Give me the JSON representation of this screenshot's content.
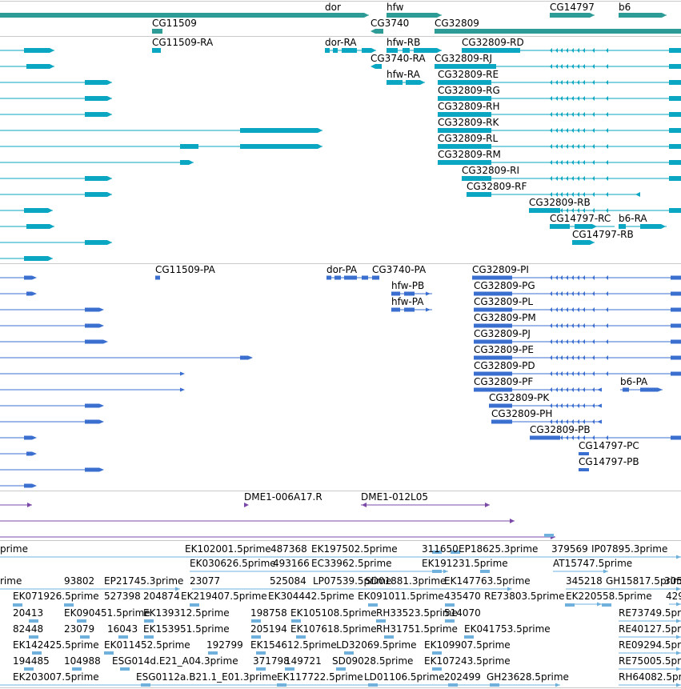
{
  "colors": {
    "background": "#ffffff",
    "track_separator": "#c9c9c9",
    "gene": "#2e9c96",
    "mrna": "#0aa6c2",
    "cds": "#3a6fcf",
    "clone": "#7a48a8",
    "est": "#6fb1dc",
    "label": "#000000"
  },
  "tracks": {
    "gene_span": {
      "name": "gene-span-track",
      "labels": [
        {
          "text": "dor"
        },
        {
          "text": "hfw"
        },
        {
          "text": "CG14797"
        },
        {
          "text": "b6"
        },
        {
          "text": "CG11509"
        },
        {
          "text": "CG3740"
        },
        {
          "text": "CG32809"
        }
      ]
    },
    "transcripts": {
      "name": "transcript-track",
      "labels": [
        {
          "text": "CG11509-RA"
        },
        {
          "text": "dor-RA"
        },
        {
          "text": "hfw-RB"
        },
        {
          "text": "CG32809-RD"
        },
        {
          "text": "CG3740-RA"
        },
        {
          "text": "CG32809-RJ"
        },
        {
          "text": "hfw-RA"
        },
        {
          "text": "CG32809-RE"
        },
        {
          "text": "CG32809-RG"
        },
        {
          "text": "CG32809-RH"
        },
        {
          "text": "CG32809-RK"
        },
        {
          "text": "CG32809-RL"
        },
        {
          "text": "CG32809-RM"
        },
        {
          "text": "CG32809-RI"
        },
        {
          "text": "CG32809-RF"
        },
        {
          "text": "CG32809-RB"
        },
        {
          "text": "CG14797-RC"
        },
        {
          "text": "b6-RA"
        },
        {
          "text": "CG14797-RB"
        }
      ]
    },
    "proteins": {
      "name": "protein-track",
      "labels": [
        {
          "text": "CG11509-PA"
        },
        {
          "text": "dor-PA"
        },
        {
          "text": "CG3740-PA"
        },
        {
          "text": "CG32809-PI"
        },
        {
          "text": "hfw-PB"
        },
        {
          "text": "CG32809-PG"
        },
        {
          "text": "hfw-PA"
        },
        {
          "text": "CG32809-PL"
        },
        {
          "text": "CG32809-PM"
        },
        {
          "text": "CG32809-PJ"
        },
        {
          "text": "CG32809-PE"
        },
        {
          "text": "CG32809-PD"
        },
        {
          "text": "CG32809-PF"
        },
        {
          "text": "b6-PA"
        },
        {
          "text": "CG32809-PK"
        },
        {
          "text": "CG32809-PH"
        },
        {
          "text": "CG32809-PB"
        },
        {
          "text": "CG14797-PC"
        },
        {
          "text": "CG14797-PB"
        }
      ]
    },
    "clones": {
      "name": "clone-track",
      "labels": [
        {
          "text": "DME1-006A17.R"
        },
        {
          "text": "DME1-012L05"
        }
      ]
    },
    "ests": {
      "name": "est-track",
      "labels": [
        {
          "text": "prime"
        },
        {
          "text": "EK102001.5prime"
        },
        {
          "text": "487368"
        },
        {
          "text": "EK197502.5prime"
        },
        {
          "text": "311650"
        },
        {
          "text": "EP18625.3prime"
        },
        {
          "text": "379569"
        },
        {
          "text": "IP07895.3prime"
        },
        {
          "text": "EK030626.5prime"
        },
        {
          "text": "493166"
        },
        {
          "text": "EC33962.5prime"
        },
        {
          "text": "EK191231.5prime"
        },
        {
          "text": "AT15747.5prime"
        },
        {
          "text": "rime"
        },
        {
          "text": "93802"
        },
        {
          "text": "EP21745.3prime"
        },
        {
          "text": "23077"
        },
        {
          "text": "525084"
        },
        {
          "text": "LP07539.5prime"
        },
        {
          "text": "SD01881.3prime"
        },
        {
          "text": "EK147763.5prime"
        },
        {
          "text": "345218"
        },
        {
          "text": "GH15817.5prime"
        },
        {
          "text": "305"
        },
        {
          "text": "EK071926.5prime"
        },
        {
          "text": "527398"
        },
        {
          "text": "204874"
        },
        {
          "text": "EK219407.5prime"
        },
        {
          "text": "EK304442.5prime"
        },
        {
          "text": "EK091011.5prime"
        },
        {
          "text": "435470"
        },
        {
          "text": "RE73803.5prime"
        },
        {
          "text": "EK220558.5prime"
        },
        {
          "text": "429"
        },
        {
          "text": "20413"
        },
        {
          "text": "EK090451.5prime"
        },
        {
          "text": "EK139312.5prime"
        },
        {
          "text": "198758"
        },
        {
          "text": "EK105108.5prime"
        },
        {
          "text": "RH33523.5prime"
        },
        {
          "text": "514070"
        },
        {
          "text": "RE73749.5prime"
        },
        {
          "text": "82448"
        },
        {
          "text": "23079"
        },
        {
          "text": "16043"
        },
        {
          "text": "EK153951.5prime"
        },
        {
          "text": "205194"
        },
        {
          "text": "EK107618.5prime"
        },
        {
          "text": "RH31751.5prime"
        },
        {
          "text": "EK041753.5prime"
        },
        {
          "text": "RE40127.5prime"
        },
        {
          "text": "EK142425.5prime"
        },
        {
          "text": "EK011452.5prime"
        },
        {
          "text": "192799"
        },
        {
          "text": "EK154612.5prime"
        },
        {
          "text": "LD32069.5prime"
        },
        {
          "text": "EK109907.5prime"
        },
        {
          "text": "RE09294.5prime"
        },
        {
          "text": "194485"
        },
        {
          "text": "104988"
        },
        {
          "text": "ESG014d.E21_A04.3prime"
        },
        {
          "text": "371798"
        },
        {
          "text": "149721"
        },
        {
          "text": "SD09028.5prime"
        },
        {
          "text": "EK107243.5prime"
        },
        {
          "text": "RE75005.5prime"
        },
        {
          "text": "EK203007.5prime"
        },
        {
          "text": "ESG0112a.B21.1_E01.3prime"
        },
        {
          "text": "EK117722.5prime"
        },
        {
          "text": "LD01106.5prime"
        },
        {
          "text": "202499"
        },
        {
          "text": "GH23628.5prime"
        },
        {
          "text": "RH64082.5prime"
        }
      ]
    }
  }
}
